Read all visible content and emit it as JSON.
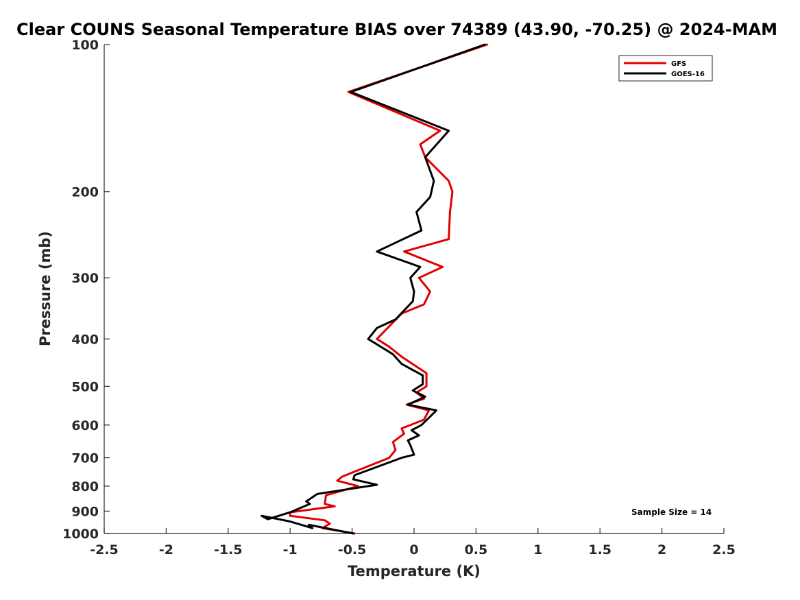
{
  "chart_data": {
    "type": "line",
    "title": "Clear COUNS Seasonal Temperature BIAS over 74389 (43.90, -70.25) @ 2024-MAM",
    "xlabel": "Temperature (K)",
    "ylabel": "Pressure (mb)",
    "xlim": [
      -2.5,
      2.5
    ],
    "ylim": [
      100,
      1000
    ],
    "yscale": "log",
    "y_reversed": true,
    "xticks": [
      -2.5,
      -2,
      -1.5,
      -1,
      -0.5,
      0,
      0.5,
      1,
      1.5,
      2,
      2.5
    ],
    "xtick_labels": [
      "-2.5",
      "-2",
      "-1.5",
      "-1",
      "-0.5",
      "0",
      "0.5",
      "1",
      "1.5",
      "2",
      "2.5"
    ],
    "yticks": [
      100,
      200,
      300,
      400,
      500,
      600,
      700,
      800,
      900,
      1000
    ],
    "ytick_labels": [
      "100",
      "200",
      "300",
      "400",
      "500",
      "600",
      "700",
      "800",
      "900",
      "1000"
    ],
    "legend_position": "top-right",
    "annotation": "Sample Size = 14",
    "series": [
      {
        "name": "GFS",
        "color": "#e00000",
        "points": [
          [
            0.59,
            100
          ],
          [
            -0.53,
            125
          ],
          [
            0.21,
            150
          ],
          [
            0.05,
            160
          ],
          [
            0.09,
            170
          ],
          [
            0.28,
            190
          ],
          [
            0.31,
            200
          ],
          [
            0.29,
            220
          ],
          [
            0.28,
            250
          ],
          [
            -0.08,
            265
          ],
          [
            0.23,
            285
          ],
          [
            0.04,
            300
          ],
          [
            0.13,
            320
          ],
          [
            0.08,
            340
          ],
          [
            -0.1,
            355
          ],
          [
            -0.3,
            400
          ],
          [
            -0.2,
            415
          ],
          [
            -0.1,
            435
          ],
          [
            0.1,
            470
          ],
          [
            0.1,
            500
          ],
          [
            0.02,
            515
          ],
          [
            0.08,
            530
          ],
          [
            -0.06,
            545
          ],
          [
            0.12,
            560
          ],
          [
            0.08,
            585
          ],
          [
            -0.1,
            610
          ],
          [
            -0.08,
            625
          ],
          [
            -0.17,
            650
          ],
          [
            -0.15,
            675
          ],
          [
            -0.2,
            700
          ],
          [
            -0.58,
            765
          ],
          [
            -0.62,
            780
          ],
          [
            -0.45,
            800
          ],
          [
            -0.71,
            835
          ],
          [
            -0.72,
            870
          ],
          [
            -0.64,
            880
          ],
          [
            -1.0,
            905
          ],
          [
            -1.0,
            920
          ],
          [
            -0.72,
            940
          ],
          [
            -0.68,
            955
          ],
          [
            -0.74,
            975
          ],
          [
            -0.48,
            1000
          ]
        ]
      },
      {
        "name": "GOES-16",
        "color": "#000000",
        "points": [
          [
            0.57,
            100
          ],
          [
            -0.51,
            125
          ],
          [
            0.28,
            150
          ],
          [
            0.09,
            170
          ],
          [
            0.16,
            190
          ],
          [
            0.13,
            205
          ],
          [
            0.02,
            220
          ],
          [
            0.06,
            240
          ],
          [
            -0.3,
            265
          ],
          [
            0.05,
            285
          ],
          [
            -0.03,
            300
          ],
          [
            0.0,
            320
          ],
          [
            -0.01,
            335
          ],
          [
            -0.15,
            365
          ],
          [
            -0.3,
            380
          ],
          [
            -0.37,
            400
          ],
          [
            -0.17,
            430
          ],
          [
            -0.1,
            450
          ],
          [
            0.07,
            475
          ],
          [
            0.07,
            495
          ],
          [
            -0.01,
            510
          ],
          [
            0.09,
            525
          ],
          [
            -0.05,
            545
          ],
          [
            0.18,
            560
          ],
          [
            0.12,
            580
          ],
          [
            0.06,
            600
          ],
          [
            -0.02,
            615
          ],
          [
            0.04,
            630
          ],
          [
            -0.05,
            645
          ],
          [
            -0.03,
            660
          ],
          [
            0.0,
            690
          ],
          [
            -0.1,
            700
          ],
          [
            -0.48,
            760
          ],
          [
            -0.49,
            775
          ],
          [
            -0.3,
            795
          ],
          [
            -0.78,
            830
          ],
          [
            -0.87,
            860
          ],
          [
            -0.84,
            870
          ],
          [
            -1.0,
            905
          ],
          [
            -1.18,
            935
          ],
          [
            -1.23,
            920
          ],
          [
            -1.0,
            945
          ],
          [
            -0.82,
            975
          ],
          [
            -0.85,
            960
          ],
          [
            -0.49,
            1000
          ]
        ]
      }
    ]
  }
}
